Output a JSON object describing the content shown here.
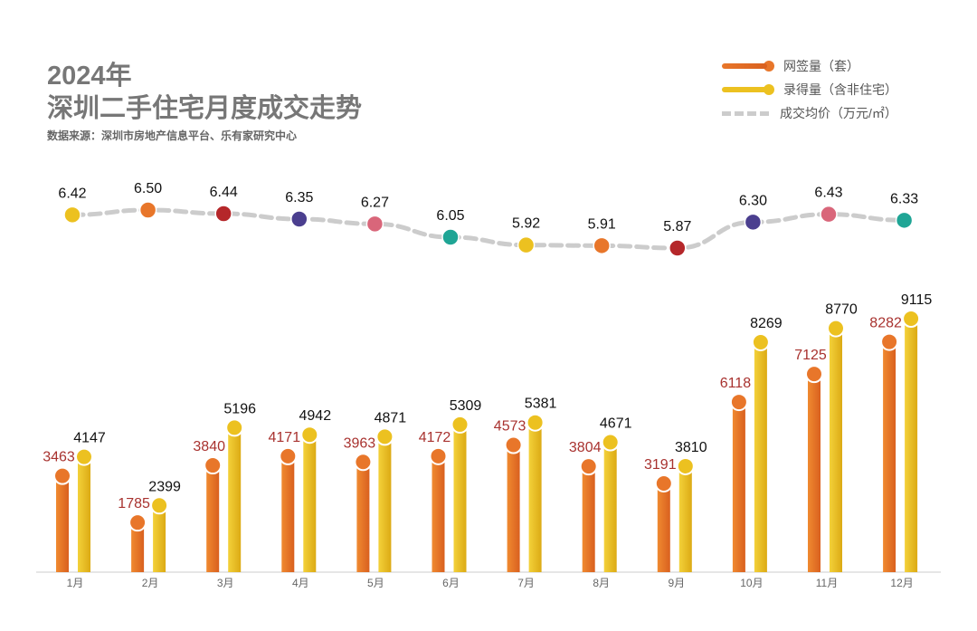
{
  "title": {
    "year": "2024年",
    "main": "深圳二手住宅月度成交走势",
    "source": "数据来源：深圳市房地产信息平台、乐有家研究中心"
  },
  "legend": {
    "signed": "网签量（套）",
    "recorded": "录得量（含非住宅）",
    "price": "成交均价（万元/㎡）"
  },
  "colors": {
    "signed": "#e8762a",
    "recorded": "#ecc120",
    "price_line": "#cccccc",
    "signed_label": "#a8322f",
    "dots": [
      "#ecc120",
      "#e8762a",
      "#b5272a",
      "#4b3f8f",
      "#d9667a",
      "#1fa595"
    ]
  },
  "chart_data": {
    "type": "bar+line",
    "categories": [
      "1月",
      "2月",
      "3月",
      "4月",
      "5月",
      "6月",
      "7月",
      "8月",
      "9月",
      "10月",
      "11月",
      "12月"
    ],
    "series": [
      {
        "name": "网签量（套）",
        "type": "bar",
        "values": [
          3463,
          1785,
          3840,
          4171,
          3963,
          4172,
          4573,
          3804,
          3191,
          6118,
          7125,
          8282
        ]
      },
      {
        "name": "录得量（含非住宅）",
        "type": "bar",
        "values": [
          4147,
          2399,
          5196,
          4942,
          4871,
          5309,
          5381,
          4671,
          3810,
          8269,
          8770,
          9115
        ]
      },
      {
        "name": "成交均价（万元/㎡）",
        "type": "line",
        "values": [
          6.42,
          6.5,
          6.44,
          6.35,
          6.27,
          6.05,
          5.92,
          5.91,
          5.87,
          6.3,
          6.43,
          6.33
        ]
      }
    ],
    "legend": "top-right",
    "grid": false
  }
}
